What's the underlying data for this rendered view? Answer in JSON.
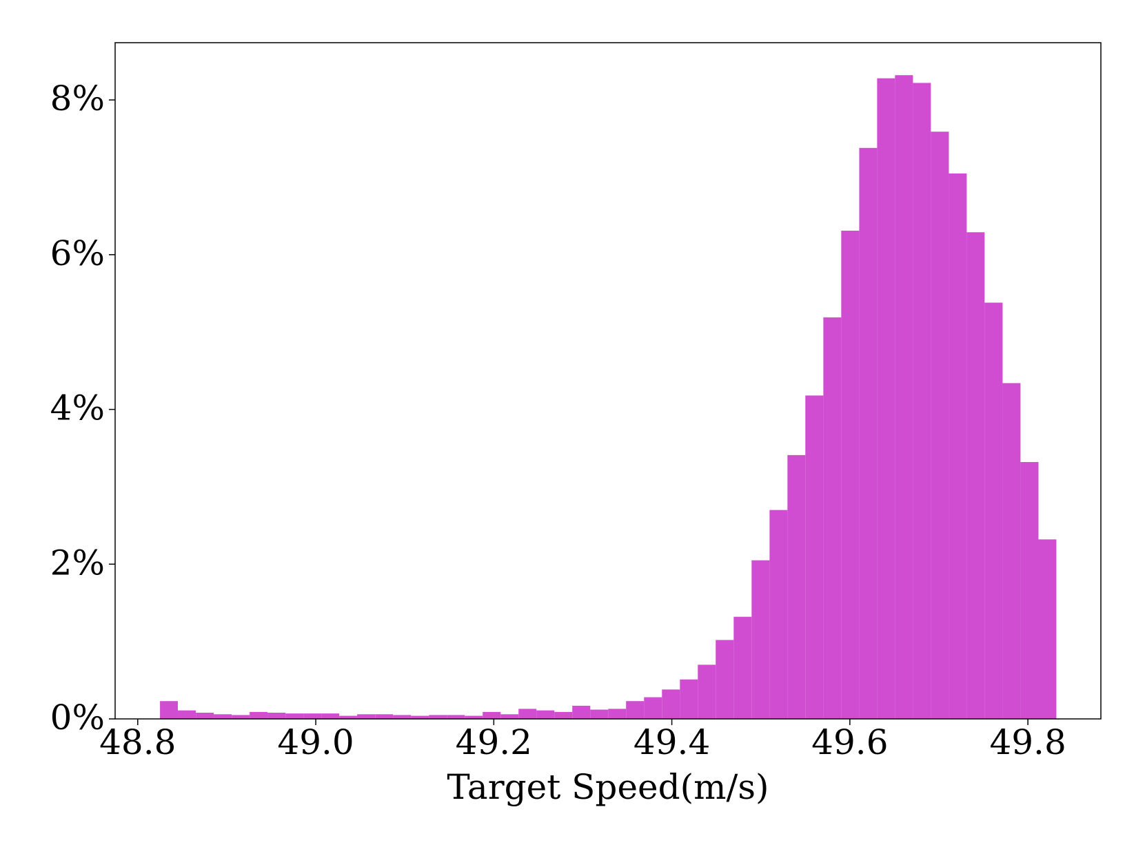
{
  "chart_data": {
    "type": "histogram",
    "xlabel": "Target Speed(m/s)",
    "color": "#d04cd1",
    "bins": [
      48.825,
      48.8451,
      48.8653,
      48.8854,
      48.9056,
      48.9257,
      48.9458,
      48.966,
      48.9861,
      49.0063,
      49.0264,
      49.0465,
      49.0667,
      49.0868,
      49.107,
      49.1271,
      49.1472,
      49.1674,
      49.1875,
      49.2077,
      49.2278,
      49.2479,
      49.2681,
      49.2882,
      49.3084,
      49.3285,
      49.3486,
      49.3688,
      49.3889,
      49.4091,
      49.4292,
      49.4493,
      49.4695,
      49.4896,
      49.5098,
      49.5299,
      49.55,
      49.5702,
      49.5903,
      49.6105,
      49.6306,
      49.6507,
      49.6709,
      49.691,
      49.7112,
      49.7313,
      49.7514,
      49.7716,
      49.7917,
      49.8119,
      49.832
    ],
    "values": [
      0.23,
      0.11,
      0.08,
      0.06,
      0.05,
      0.09,
      0.08,
      0.07,
      0.07,
      0.07,
      0.04,
      0.06,
      0.06,
      0.05,
      0.04,
      0.05,
      0.05,
      0.04,
      0.09,
      0.06,
      0.13,
      0.11,
      0.09,
      0.17,
      0.12,
      0.13,
      0.23,
      0.28,
      0.38,
      0.51,
      0.7,
      1.02,
      1.32,
      2.05,
      2.7,
      3.41,
      4.18,
      5.19,
      6.31,
      7.38,
      8.28,
      8.32,
      8.22,
      7.59,
      7.05,
      6.29,
      5.38,
      4.34,
      3.32,
      2.32
    ],
    "xlim": [
      48.7746,
      49.882
    ],
    "xticks": [
      48.8,
      {
        "value": 49,
        "label": "49.0"
      },
      49.2,
      49.4,
      49.6,
      49.8
    ],
    "ylim": [
      0,
      8.74
    ],
    "yticks": [
      {
        "value": 0,
        "label": "0%"
      },
      {
        "value": 2,
        "label": "2%"
      },
      {
        "value": 4,
        "label": "4%"
      },
      {
        "value": 6,
        "label": "6%"
      },
      {
        "value": 8,
        "label": "8%"
      }
    ]
  }
}
